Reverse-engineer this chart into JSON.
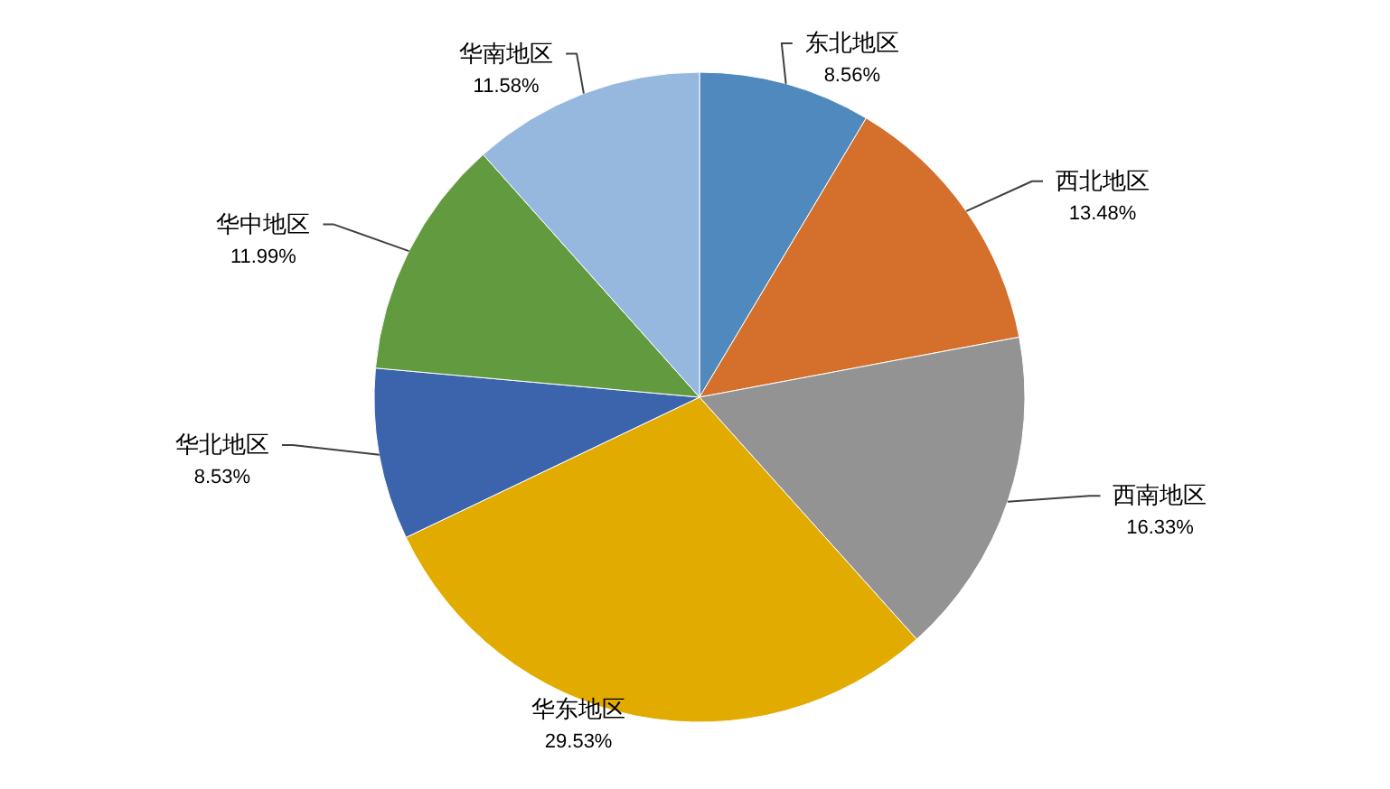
{
  "chart_data": {
    "type": "pie",
    "categories": [
      "东北地区",
      "西北地区",
      "西南地区",
      "华东地区",
      "华北地区",
      "华中地区",
      "华南地区"
    ],
    "values": [
      8.56,
      13.48,
      16.33,
      29.53,
      8.53,
      11.99,
      11.58
    ],
    "colors": [
      "#4f89bd",
      "#d4702b",
      "#939393",
      "#e2ab00",
      "#3c64ad",
      "#629a3f",
      "#97b8de"
    ],
    "value_labels": [
      "8.56%",
      "13.48%",
      "16.33%",
      "29.53%",
      "8.53%",
      "11.99%",
      "11.58%"
    ]
  }
}
